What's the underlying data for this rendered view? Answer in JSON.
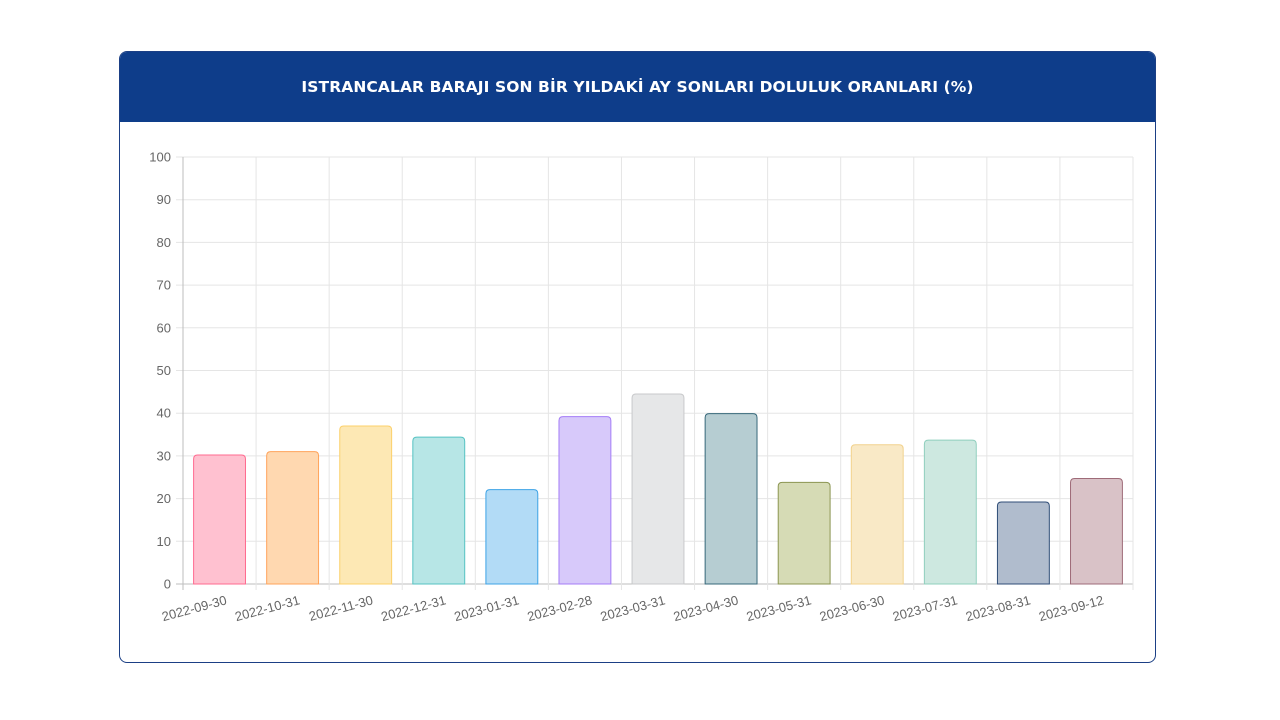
{
  "chart_data": {
    "type": "bar",
    "title": "ISTRANCALAR BARAJI SON BİR YILDAKİ AY SONLARI DOLULUK ORANLARI (%)",
    "xlabel": "",
    "ylabel": "",
    "ylim": [
      0,
      100
    ],
    "yticks": [
      "0",
      "10",
      "20",
      "30",
      "40",
      "50",
      "60",
      "70",
      "80",
      "90",
      "100"
    ],
    "grid": true,
    "legend": "none",
    "categories": [
      "2022-09-30",
      "2022-10-31",
      "2022-11-30",
      "2022-12-31",
      "2023-01-31",
      "2023-02-28",
      "2023-03-31",
      "2023-04-30",
      "2023-05-31",
      "2023-06-30",
      "2023-07-31",
      "2023-08-31",
      "2023-09-12"
    ],
    "values": [
      30.2,
      31.0,
      37.0,
      34.4,
      22.1,
      39.2,
      44.5,
      39.9,
      23.8,
      32.6,
      33.7,
      19.2,
      24.7
    ],
    "fill_colors": [
      "#ffc1d0",
      "#ffd8b0",
      "#fde8b4",
      "#b7e6e6",
      "#b2dbf6",
      "#d7c9fa",
      "#e6e7e8",
      "#b6cdd2",
      "#d6dbb5",
      "#f9e9c6",
      "#cde8e0",
      "#b0bccd",
      "#d9c2c7"
    ],
    "border_colors": [
      "#ff6a8f",
      "#ffa35a",
      "#fcd06a",
      "#55c2c2",
      "#3da3e6",
      "#a47cf7",
      "#c8c9cb",
      "#37687a",
      "#8c9652",
      "#f2d28d",
      "#8fcfbd",
      "#2f4d77",
      "#9e6b78"
    ]
  }
}
